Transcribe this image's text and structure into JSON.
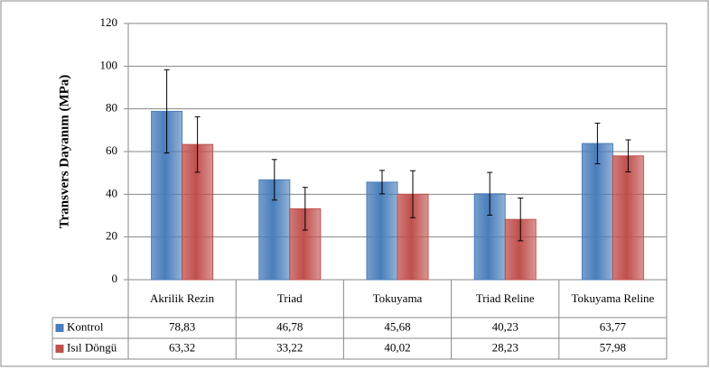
{
  "chart_data": {
    "type": "bar",
    "y_label": "Transvers Dayanım (MPa)",
    "categories": [
      "Akrilik Rezin",
      "Triad",
      "Tokuyama",
      "Triad Reline",
      "Tokuyama Reline"
    ],
    "series": [
      {
        "name": "Kontrol",
        "color": "#4a7ebb",
        "values": [
          78.83,
          46.78,
          45.68,
          40.23,
          63.77
        ],
        "value_labels": [
          "78,83",
          "46,78",
          "45,68",
          "40,23",
          "63,77"
        ],
        "errors": [
          19.5,
          9.5,
          5.5,
          10,
          9.5
        ]
      },
      {
        "name": "Isıl Döngü",
        "color": "#c0504d",
        "values": [
          63.32,
          33.22,
          40.02,
          28.23,
          57.98
        ],
        "value_labels": [
          "63,32",
          "33,22",
          "40,02",
          "28,23",
          "57,98"
        ],
        "errors": [
          13,
          10,
          11,
          10,
          7.5
        ]
      }
    ],
    "ylim": [
      0,
      120
    ],
    "yticks": [
      0,
      20,
      40,
      60,
      80,
      100,
      120
    ],
    "grid": true
  }
}
